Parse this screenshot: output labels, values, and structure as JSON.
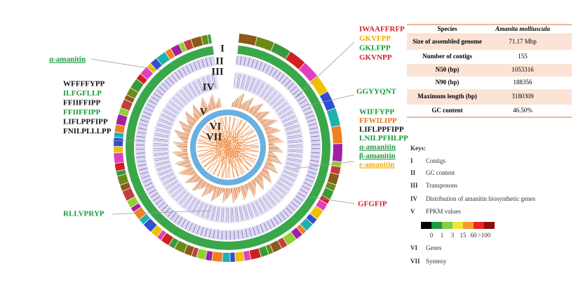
{
  "circle_labels": [
    "I",
    "II",
    "III",
    "IV",
    "V",
    "VI",
    "VII"
  ],
  "left_top": {
    "text": "α-amanitin",
    "color": "#1a9a3a"
  },
  "left_list": [
    {
      "text": "WFFFFYPP",
      "color": "#111111"
    },
    {
      "text": "ILFGFLLP",
      "color": "#1a9a3a"
    },
    {
      "text": "FFIIFFIPP",
      "color": "#111111"
    },
    {
      "text": "FFIIFFIPP",
      "color": "#1a9a3a"
    },
    {
      "text": "LIFLPPFIPP",
      "color": "#111111"
    },
    {
      "text": "FNILPLLLPP",
      "color": "#111111"
    }
  ],
  "left_bottom": {
    "text": "RLLVPRYP",
    "color": "#1a9a3a"
  },
  "right_top": [
    {
      "text": "IWAAFFRFP",
      "color": "#d0202a"
    },
    {
      "text": "GKVFPP",
      "color": "#f0a800"
    },
    {
      "text": "GKLFPP",
      "color": "#1a9a3a"
    },
    {
      "text": "GKVNPP",
      "color": "#d0202a"
    }
  ],
  "right_mid": {
    "text": "GGYYQNT",
    "color": "#1a9a3a"
  },
  "right_list": [
    {
      "text": "WIFFYPP",
      "color": "#1a9a3a"
    },
    {
      "text": "FFWILIPP",
      "color": "#e8761a"
    },
    {
      "text": "LIFLPPFIPP",
      "color": "#111111"
    },
    {
      "text": "LNILPFHLPP",
      "color": "#1a9a3a"
    },
    {
      "text": "α-amanitin",
      "color": "#1a9a3a"
    },
    {
      "text": "β-amanitin",
      "color": "#1a9a3a"
    },
    {
      "text": "ε-amanitin",
      "color": "#f0a800"
    }
  ],
  "right_bottom": {
    "text": "GFGFIP",
    "color": "#d0202a"
  },
  "table": {
    "rows": [
      [
        "Species",
        "Amanita molliuscula"
      ],
      [
        "Size of assembled genome",
        "71.17 Mbp"
      ],
      [
        "Number of contigs",
        "155"
      ],
      [
        "N50 (bp)",
        "1053316"
      ],
      [
        "N90 (bp)",
        "188356"
      ],
      [
        "Maximum length (bp)",
        "3180309"
      ],
      [
        "GC content",
        "46.50%"
      ]
    ]
  },
  "keys": {
    "title": "Keys:",
    "items": [
      [
        "I",
        "Contigs"
      ],
      [
        "II",
        "GC content"
      ],
      [
        "III",
        "Transposons"
      ],
      [
        "IV",
        "Distribution of amanitin biosynthetic genes"
      ],
      [
        "V",
        "FPKM values"
      ],
      [
        "VI",
        "Genes"
      ],
      [
        "VII",
        "Synteny"
      ]
    ]
  },
  "scale": {
    "colors": [
      "#000000",
      "#1e9a3c",
      "#7fd04a",
      "#f5e23a",
      "#f59a2a",
      "#e8261e",
      "#8a1010"
    ],
    "labels": [
      "0",
      "1",
      "3",
      "15",
      "60",
      ">100"
    ]
  }
}
